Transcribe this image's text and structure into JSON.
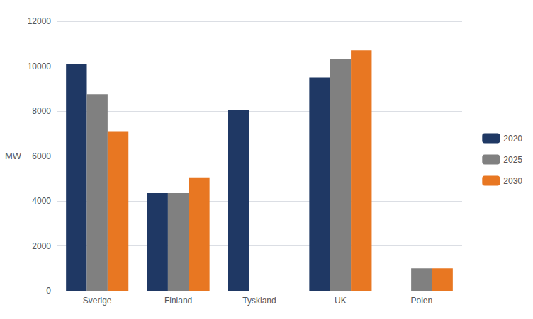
{
  "chart_data": {
    "type": "bar",
    "categories": [
      "Sverige",
      "Finland",
      "Tyskland",
      "UK",
      "Polen"
    ],
    "series": [
      {
        "name": "2020",
        "color": "#1F3864",
        "values": [
          10100,
          4350,
          8050,
          9500,
          0
        ]
      },
      {
        "name": "2025",
        "color": "#808080",
        "values": [
          8750,
          4350,
          0,
          10300,
          1000
        ]
      },
      {
        "name": "2030",
        "color": "#E87722",
        "values": [
          7100,
          5050,
          0,
          10700,
          1000
        ]
      }
    ],
    "ylabel": "MW",
    "ylim": [
      0,
      12000
    ],
    "yticks": [
      0,
      2000,
      4000,
      6000,
      8000,
      10000,
      12000
    ],
    "grid": true,
    "legend": "right"
  }
}
